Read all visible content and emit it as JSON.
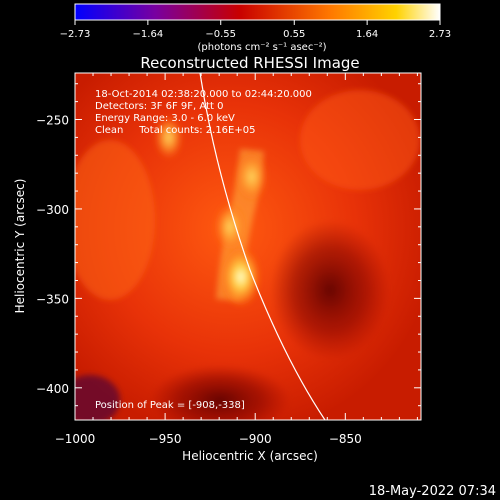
{
  "colorbar": {
    "ticks": [
      "-2.73",
      "-1.64",
      "-0.55",
      "0.55",
      "1.64",
      "2.73"
    ],
    "unit": "(photons cm⁻² s⁻¹ asec⁻²)",
    "range": [
      -2.73,
      2.73
    ],
    "colors": [
      "#0000ff",
      "#7800a0",
      "#c80000",
      "#ff7800",
      "#ffd200",
      "#ffffff"
    ]
  },
  "chart_data": {
    "type": "heatmap",
    "title": "Reconstructed RHESSI Image",
    "xlabel": "Heliocentric X (arcsec)",
    "ylabel": "Heliocentric Y (arcsec)",
    "xlim": [
      -1000,
      -808
    ],
    "ylim": [
      -418,
      -224
    ],
    "xticks": [
      -1000,
      -950,
      -900,
      -850
    ],
    "xtick_labels": [
      "−1000",
      "−950",
      "−900",
      "−850"
    ],
    "yticks": [
      -250,
      -300,
      -350,
      -400
    ],
    "ytick_labels": [
      "−250",
      "−300",
      "−350",
      "−400"
    ],
    "annotations": [
      "18-Oct-2014 02:38:20.000 to 02:44:20.000",
      "Detectors: 3F 6F 9F, Att 0",
      "Energy Range: 3.0 - 6.0 keV",
      "Clean     Total counts: 2.16E+05"
    ],
    "peak_label": "Position of Peak = [-908,-338]",
    "peak": [
      -908,
      -338
    ],
    "sources": [
      {
        "x": -908,
        "y": -338,
        "level": 2.73
      },
      {
        "x": -914,
        "y": -310,
        "level": 1.9
      },
      {
        "x": -902,
        "y": -282,
        "level": 2.0
      },
      {
        "x": -948,
        "y": -260,
        "level": 1.6
      }
    ]
  },
  "footer": {
    "timestamp": "18-May-2022 07:34"
  }
}
